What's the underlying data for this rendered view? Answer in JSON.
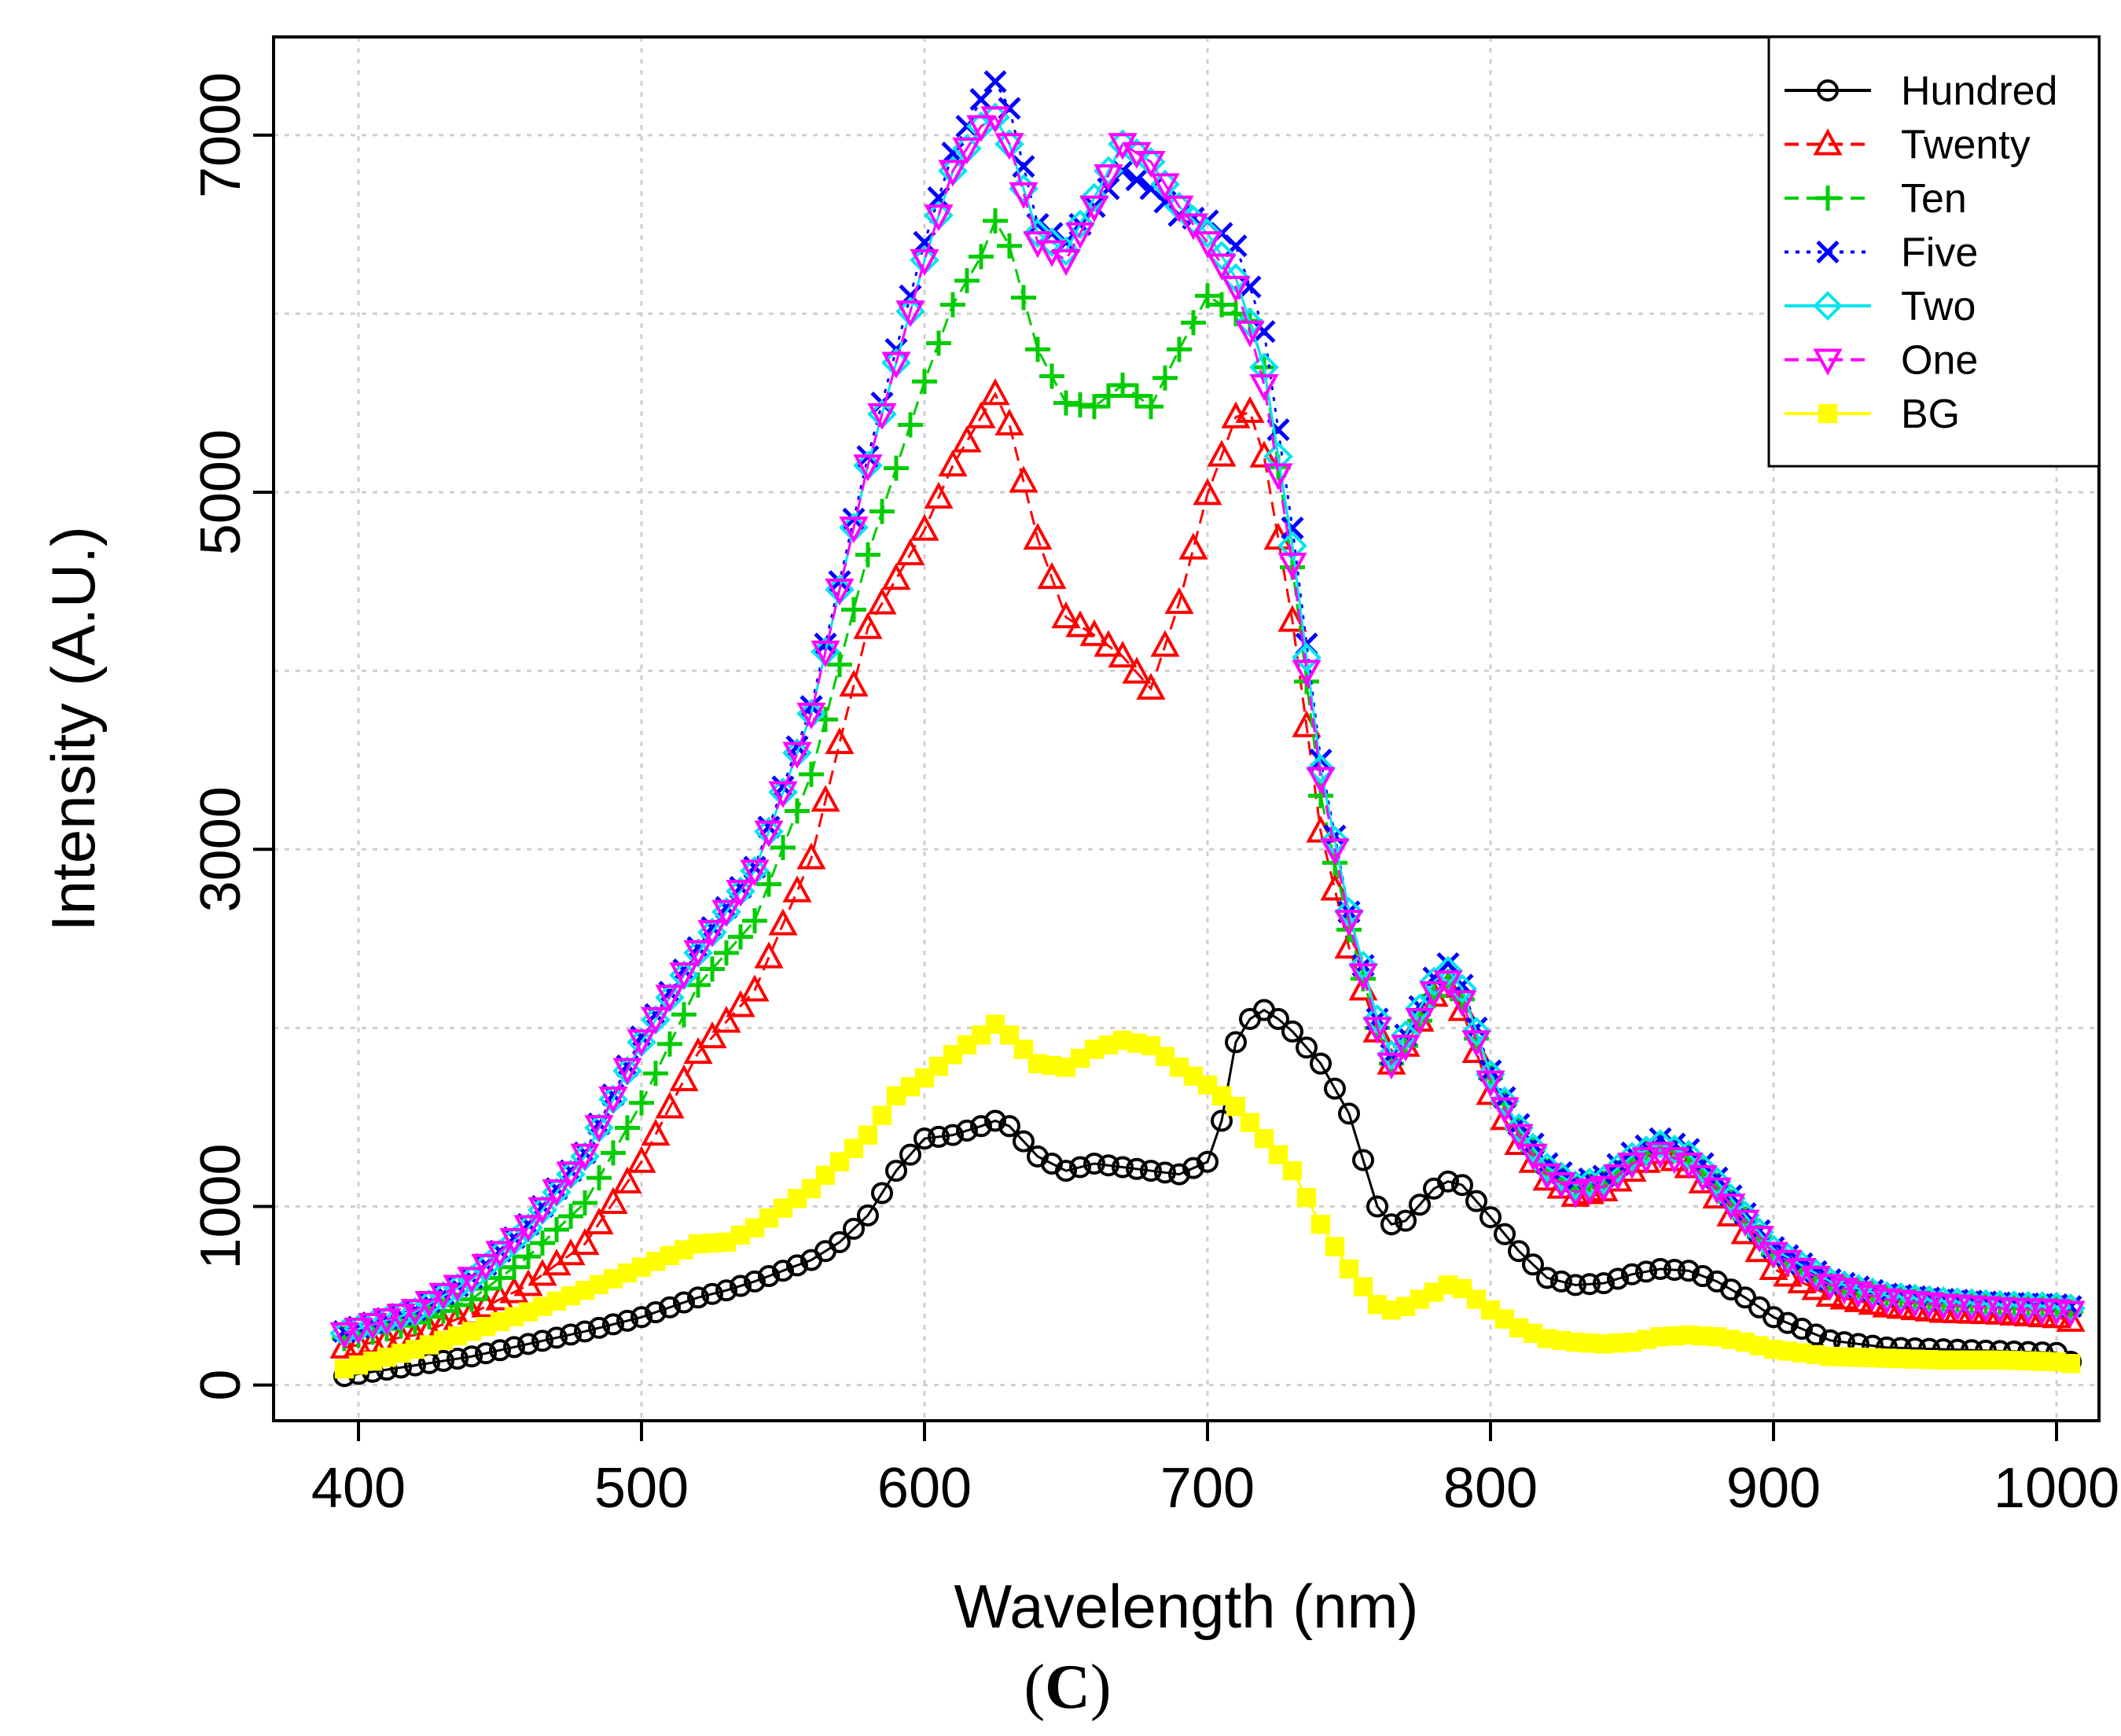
{
  "chart_data": {
    "type": "scatter",
    "title": "",
    "caption_open": "(",
    "caption_letter": "C",
    "caption_close": ")",
    "xlabel": "Wavelength (nm)",
    "ylabel": "Intensity (A.U.)",
    "xlim": [
      370,
      1015
    ],
    "ylim": [
      -200,
      7550
    ],
    "xticks": [
      400,
      500,
      600,
      700,
      800,
      900,
      1000
    ],
    "yticks": [
      0,
      1000,
      3000,
      5000,
      7000
    ],
    "grid": true,
    "legend_position": "top-right",
    "series": [
      {
        "name": "Hundred",
        "color": "#000000",
        "marker": "circle",
        "line": "solid",
        "x": [
          395,
          420,
          440,
          460,
          480,
          500,
          520,
          530,
          540,
          560,
          570,
          580,
          590,
          600,
          610,
          620,
          625,
          630,
          640,
          650,
          660,
          670,
          680,
          690,
          700,
          705,
          710,
          715,
          720,
          725,
          730,
          740,
          750,
          760,
          765,
          770,
          780,
          785,
          790,
          800,
          810,
          820,
          830,
          840,
          850,
          860,
          870,
          880,
          890,
          900,
          920,
          940,
          960,
          980,
          1000,
          1005
        ],
        "y": [
          50,
          110,
          160,
          230,
          300,
          380,
          490,
          530,
          580,
          700,
          800,
          950,
          1200,
          1380,
          1400,
          1450,
          1480,
          1450,
          1280,
          1200,
          1240,
          1220,
          1200,
          1180,
          1250,
          1480,
          1920,
          2050,
          2100,
          2050,
          1980,
          1800,
          1520,
          1000,
          900,
          920,
          1100,
          1140,
          1120,
          940,
          750,
          600,
          560,
          570,
          620,
          650,
          640,
          580,
          490,
          380,
          250,
          210,
          200,
          190,
          180,
          130
        ]
      },
      {
        "name": "Twenty",
        "color": "#ff0000",
        "marker": "triangle-up",
        "line": "dashed",
        "x": [
          395,
          420,
          440,
          460,
          480,
          500,
          520,
          540,
          560,
          580,
          600,
          610,
          620,
          625,
          630,
          640,
          650,
          660,
          670,
          680,
          690,
          700,
          710,
          715,
          720,
          730,
          740,
          750,
          760,
          765,
          770,
          780,
          785,
          790,
          800,
          810,
          820,
          830,
          840,
          850,
          860,
          870,
          880,
          890,
          900,
          920,
          940,
          960,
          980,
          1000,
          1005
        ],
        "y": [
          210,
          280,
          400,
          560,
          790,
          1250,
          1860,
          2210,
          2950,
          4240,
          4790,
          5150,
          5420,
          5550,
          5380,
          4740,
          4300,
          4200,
          4080,
          3900,
          4380,
          4990,
          5420,
          5450,
          5200,
          4280,
          3100,
          2450,
          1980,
          1800,
          1900,
          2180,
          2230,
          2100,
          1630,
          1350,
          1150,
          1060,
          1090,
          1200,
          1300,
          1220,
          1050,
          850,
          650,
          500,
          440,
          410,
          400,
          380,
          360
        ]
      },
      {
        "name": "Ten",
        "color": "#00cc00",
        "marker": "plus",
        "line": "dashed",
        "x": [
          395,
          420,
          440,
          460,
          480,
          500,
          520,
          540,
          560,
          580,
          600,
          610,
          620,
          625,
          630,
          640,
          650,
          660,
          670,
          680,
          690,
          700,
          710,
          715,
          720,
          730,
          740,
          750,
          760,
          765,
          770,
          780,
          785,
          790,
          800,
          810,
          820,
          830,
          840,
          850,
          860,
          870,
          880,
          890,
          900,
          920,
          940,
          960,
          980,
          1000,
          1005
        ],
        "y": [
          260,
          350,
          480,
          720,
          1020,
          1580,
          2240,
          2600,
          3420,
          4650,
          5620,
          6050,
          6320,
          6520,
          6380,
          5800,
          5500,
          5480,
          5600,
          5480,
          5800,
          6100,
          6000,
          5960,
          5700,
          4580,
          3300,
          2550,
          2000,
          1800,
          1900,
          2180,
          2260,
          2160,
          1720,
          1430,
          1200,
          1100,
          1130,
          1250,
          1350,
          1280,
          1120,
          930,
          730,
          560,
          490,
          450,
          440,
          430,
          410
        ]
      },
      {
        "name": "Five",
        "color": "#0000ff",
        "marker": "x",
        "line": "dotted",
        "x": [
          395,
          420,
          440,
          460,
          480,
          500,
          520,
          540,
          560,
          580,
          600,
          610,
          620,
          625,
          630,
          640,
          650,
          660,
          670,
          680,
          690,
          700,
          710,
          715,
          720,
          730,
          740,
          750,
          760,
          765,
          770,
          780,
          785,
          790,
          800,
          810,
          820,
          830,
          840,
          850,
          860,
          870,
          880,
          890,
          900,
          920,
          940,
          960,
          980,
          1000,
          1005
        ],
        "y": [
          300,
          420,
          600,
          900,
          1300,
          1950,
          2450,
          2900,
          3800,
          5200,
          6400,
          6900,
          7200,
          7300,
          7150,
          6500,
          6400,
          6600,
          6800,
          6700,
          6550,
          6520,
          6380,
          6150,
          5900,
          4800,
          3500,
          2650,
          2050,
          1850,
          1960,
          2280,
          2360,
          2240,
          1760,
          1460,
          1240,
          1140,
          1170,
          1300,
          1380,
          1320,
          1160,
          960,
          770,
          590,
          510,
          480,
          460,
          450,
          440
        ]
      },
      {
        "name": "Two",
        "color": "#00e5ee",
        "marker": "diamond",
        "line": "solid",
        "x": [
          395,
          420,
          440,
          460,
          480,
          500,
          520,
          540,
          560,
          580,
          600,
          610,
          620,
          625,
          630,
          640,
          650,
          660,
          670,
          680,
          690,
          700,
          710,
          715,
          720,
          730,
          740,
          750,
          760,
          765,
          770,
          780,
          785,
          790,
          800,
          810,
          820,
          830,
          840,
          850,
          860,
          870,
          880,
          890,
          900,
          920,
          940,
          960,
          980,
          1000,
          1005
        ],
        "y": [
          290,
          410,
          590,
          880,
          1280,
          1920,
          2420,
          2880,
          3760,
          5150,
          6300,
          6800,
          7050,
          7100,
          6950,
          6450,
          6350,
          6650,
          6950,
          6850,
          6600,
          6450,
          6200,
          5950,
          5700,
          4700,
          3450,
          2650,
          2050,
          1850,
          1960,
          2260,
          2320,
          2220,
          1740,
          1440,
          1220,
          1120,
          1150,
          1280,
          1350,
          1290,
          1140,
          950,
          760,
          580,
          500,
          470,
          450,
          440,
          430
        ]
      },
      {
        "name": "One",
        "color": "#ff00ff",
        "marker": "triangle-down",
        "line": "dashed",
        "x": [
          395,
          420,
          440,
          460,
          480,
          500,
          520,
          540,
          560,
          580,
          600,
          610,
          620,
          625,
          630,
          640,
          650,
          660,
          670,
          680,
          690,
          700,
          710,
          715,
          720,
          730,
          740,
          750,
          760,
          765,
          770,
          780,
          785,
          790,
          800,
          810,
          820,
          830,
          840,
          850,
          860,
          870,
          880,
          890,
          900,
          920,
          940,
          960,
          980,
          1000,
          1005
        ],
        "y": [
          290,
          420,
          600,
          890,
          1290,
          1930,
          2430,
          2880,
          3760,
          5150,
          6300,
          6800,
          7050,
          7100,
          6950,
          6400,
          6300,
          6600,
          6950,
          6850,
          6600,
          6400,
          6150,
          5900,
          5600,
          4600,
          3400,
          2600,
          2000,
          1800,
          1900,
          2200,
          2260,
          2150,
          1700,
          1400,
          1180,
          1080,
          1110,
          1240,
          1300,
          1240,
          1100,
          920,
          740,
          560,
          480,
          450,
          430,
          420,
          410
        ]
      },
      {
        "name": "BG",
        "color": "#ffff00",
        "marker": "square",
        "line": "solid",
        "x": [
          395,
          420,
          440,
          460,
          480,
          500,
          520,
          530,
          540,
          560,
          580,
          590,
          600,
          610,
          620,
          625,
          630,
          640,
          650,
          660,
          670,
          680,
          690,
          700,
          710,
          720,
          730,
          740,
          750,
          760,
          765,
          770,
          780,
          785,
          790,
          800,
          810,
          820,
          830,
          840,
          850,
          860,
          870,
          880,
          890,
          900,
          920,
          940,
          960,
          980,
          1000,
          1005
        ],
        "y": [
          90,
          200,
          300,
          410,
          530,
          660,
          790,
          800,
          880,
          1100,
          1400,
          1620,
          1720,
          1850,
          1960,
          2020,
          1960,
          1800,
          1780,
          1880,
          1930,
          1900,
          1780,
          1680,
          1560,
          1380,
          1200,
          900,
          650,
          450,
          420,
          440,
          520,
          560,
          540,
          420,
          320,
          260,
          240,
          230,
          240,
          270,
          280,
          270,
          240,
          200,
          160,
          150,
          140,
          140,
          130,
          120
        ]
      }
    ]
  }
}
